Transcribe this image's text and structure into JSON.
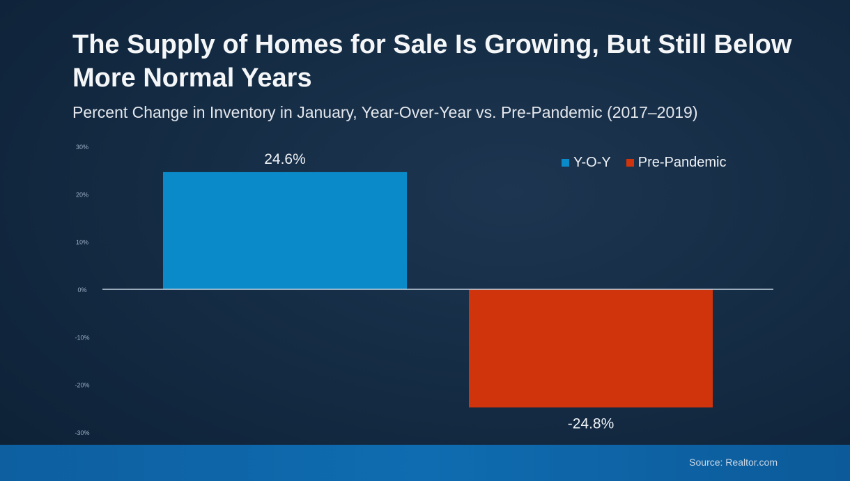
{
  "header": {
    "title": "The Supply of Homes for Sale Is Growing, But Still Below More Normal Years",
    "subtitle": "Percent Change in Inventory in January, Year-Over-Year vs. Pre-Pandemic (2017–2019)"
  },
  "footer": {
    "source": "Source: Realtor.com"
  },
  "colors": {
    "yoy": "#0a8ac8",
    "pre_pandemic": "#d0340c",
    "axis": "#c8d6e4"
  },
  "chart_data": {
    "type": "bar",
    "categories": [
      "Y-O-Y",
      "Pre-Pandemic"
    ],
    "series": [
      {
        "name": "Y-O-Y",
        "values": [
          24.6,
          null
        ]
      },
      {
        "name": "Pre-Pandemic",
        "values": [
          null,
          -24.8
        ]
      }
    ],
    "values": [
      24.6,
      -24.8
    ],
    "data_labels": [
      "24.6%",
      "-24.8%"
    ],
    "ylim": [
      -30,
      30
    ],
    "yticks": [
      30,
      20,
      10,
      0,
      -10,
      -20,
      -30
    ],
    "ytick_labels": [
      "30%",
      "20%",
      "10%",
      "0%",
      "-10%",
      "-20%",
      "-30%"
    ],
    "legend": {
      "position": "top-right",
      "entries": [
        "Y-O-Y",
        "Pre-Pandemic"
      ]
    },
    "grid": false,
    "xlabel": "",
    "ylabel": ""
  }
}
